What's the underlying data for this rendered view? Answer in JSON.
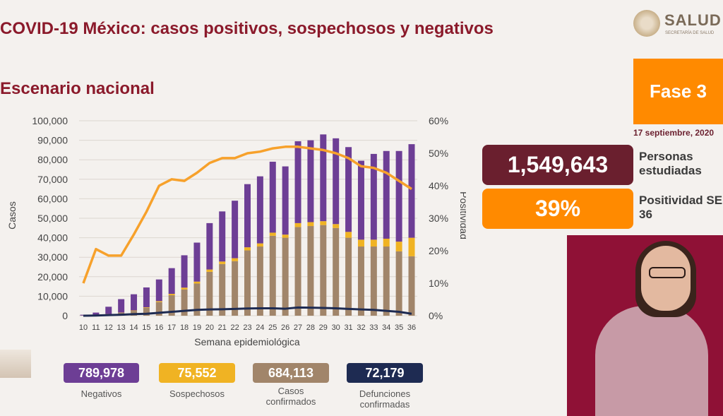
{
  "header": {
    "title": "COVID-19 México: casos positivos, sospechosos y negativos",
    "subtitle": "Escenario nacional"
  },
  "logo": {
    "name": "SALUD",
    "subname": "SECRETARÍA DE SALUD"
  },
  "phase": {
    "label": "Fase 3",
    "date": "17 septiembre, 2020"
  },
  "stats": {
    "people_value": "1,549,643",
    "people_label": "Personas estudiadas",
    "positivity_value": "39%",
    "positivity_label": "Positividad SE 36"
  },
  "summary": {
    "negatives_value": "789,978",
    "negatives_label": "Negativos",
    "suspects_value": "75,552",
    "suspects_label": "Sospechosos",
    "confirmed_value": "684,113",
    "confirmed_label": "Casos confirmados",
    "deaths_value": "72,179",
    "deaths_label": "Defunciones confirmadas"
  },
  "colors": {
    "negatives": "#6d3e95",
    "suspects": "#f0b323",
    "confirmed": "#a1856a",
    "deaths": "#1e2b52",
    "positivity": "#f7a12b",
    "title": "#8b1a2b",
    "phase": "#ff8a00",
    "people": "#6a1f2e"
  },
  "chart_data": {
    "type": "bar",
    "stacked": true,
    "xlabel": "Semana epidemiológica",
    "ylabel": "Casos",
    "y2label": "Positividad",
    "ylim": [
      0,
      100000
    ],
    "y2lim": [
      0,
      60
    ],
    "yticks": [
      "0",
      "10,000",
      "20,000",
      "30,000",
      "40,000",
      "50,000",
      "60,000",
      "70,000",
      "80,000",
      "90,000",
      "100,000"
    ],
    "y2ticks": [
      "0%",
      "10%",
      "20%",
      "30%",
      "40%",
      "50%",
      "60%"
    ],
    "grid": true,
    "categories": [
      "10",
      "11",
      "12",
      "13",
      "14",
      "15",
      "16",
      "17",
      "18",
      "19",
      "20",
      "21",
      "22",
      "23",
      "24",
      "25",
      "26",
      "27",
      "28",
      "29",
      "30",
      "31",
      "32",
      "33",
      "34",
      "35",
      "36"
    ],
    "series": [
      {
        "name": "Casos confirmados",
        "kind": "bar",
        "values": [
          100,
          300,
          800,
          1500,
          2500,
          4000,
          7000,
          10500,
          13500,
          16500,
          22500,
          26500,
          28000,
          33500,
          35500,
          41000,
          40000,
          45500,
          46000,
          46500,
          45000,
          40000,
          35500,
          35500,
          35500,
          33000,
          30500
        ]
      },
      {
        "name": "Sospechosos",
        "kind": "bar",
        "values": [
          0,
          0,
          100,
          100,
          200,
          300,
          500,
          700,
          900,
          1000,
          1200,
          1300,
          1500,
          1600,
          1600,
          1600,
          1600,
          2000,
          2000,
          2000,
          2000,
          3000,
          3500,
          3500,
          4000,
          5000,
          9500
        ]
      },
      {
        "name": "Negativos",
        "kind": "bar",
        "values": [
          400,
          1300,
          3700,
          6900,
          8300,
          10200,
          11100,
          13200,
          16600,
          20000,
          23800,
          25700,
          29500,
          32400,
          34400,
          36400,
          35000,
          42000,
          42000,
          44500,
          44000,
          43500,
          40500,
          44000,
          45000,
          46500,
          48000
        ]
      },
      {
        "name": "Defunciones",
        "kind": "line",
        "values": [
          0,
          100,
          300,
          500,
          800,
          1000,
          1500,
          2000,
          2500,
          3000,
          3200,
          3300,
          3500,
          3700,
          3800,
          3800,
          3600,
          4200,
          4100,
          4000,
          3800,
          3500,
          3200,
          3000,
          2500,
          2000,
          1000
        ]
      },
      {
        "name": "Positividad",
        "kind": "line",
        "axis": "right",
        "values": [
          10,
          20.5,
          18.5,
          18.5,
          25,
          32,
          40,
          42,
          41.5,
          44,
          47,
          48.5,
          48.5,
          50,
          50.5,
          51.5,
          52,
          52,
          51.5,
          51,
          50,
          48.5,
          46,
          45.5,
          44,
          41.5,
          39
        ]
      }
    ]
  }
}
